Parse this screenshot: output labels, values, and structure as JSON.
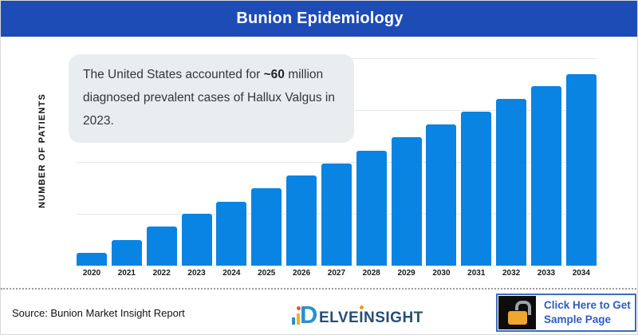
{
  "header": {
    "title": "Bunion Epidemiology",
    "bg_color": "#1e4cb7"
  },
  "annotation": {
    "text_before": "The United States accounted for ",
    "highlight": "~60",
    "text_after": " million diagnosed prevalent cases of Hallux Valgus in 2023."
  },
  "chart_data": {
    "type": "bar",
    "title": "Bunion Epidemiology",
    "xlabel": "",
    "ylabel": "NUMBER OF PATIENTS",
    "categories": [
      "2020",
      "2021",
      "2022",
      "2023",
      "2024",
      "2025",
      "2026",
      "2027",
      "2028",
      "2029",
      "2030",
      "2031",
      "2032",
      "2033",
      "2034"
    ],
    "values": [
      15,
      30,
      45,
      60,
      74,
      90,
      104,
      118,
      133,
      149,
      163,
      178,
      193,
      208,
      222
    ],
    "unit": "million patients (estimated; y-axis unlabeled, scaled so 2023 ≈ 60 million per annotation)",
    "ylim": [
      0,
      240
    ],
    "grid": "horizontal gridlines, no y tick labels",
    "legend": "none",
    "bar_color": "#0984e3"
  },
  "footer": {
    "source": "Source: Bunion Market Insight Report",
    "logo": {
      "prefix_letter": "D",
      "part1": "ELVE",
      "dotted_letter": "I",
      "part2": "NSIGHT"
    },
    "cta": {
      "line1": "Click Here to Get",
      "line2": "Sample Page"
    }
  }
}
